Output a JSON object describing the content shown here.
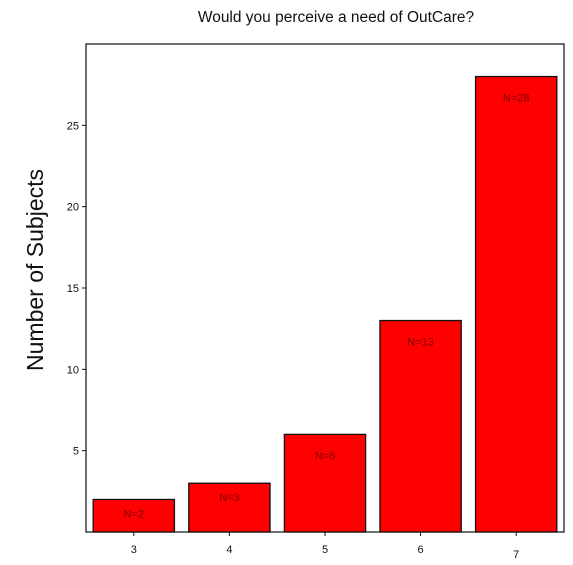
{
  "chart_data": {
    "type": "bar",
    "title": "Would you perceive a need of OutCare?",
    "xlabel": "",
    "ylabel": "Number of Subjects",
    "categories": [
      "3",
      "4",
      "5",
      "6",
      "7"
    ],
    "values": [
      2,
      3,
      6,
      13,
      28
    ],
    "data_labels": [
      "N=2",
      "N=3",
      "N=6",
      "N=13",
      "N=28"
    ],
    "y_ticks": [
      5,
      10,
      15,
      20,
      25
    ],
    "ylim": [
      0,
      30
    ],
    "grid": false,
    "legend": "none",
    "colors": {
      "bar_fill": "#ff0000",
      "bar_stroke": "#111111",
      "label_text": "#7a0000"
    }
  }
}
